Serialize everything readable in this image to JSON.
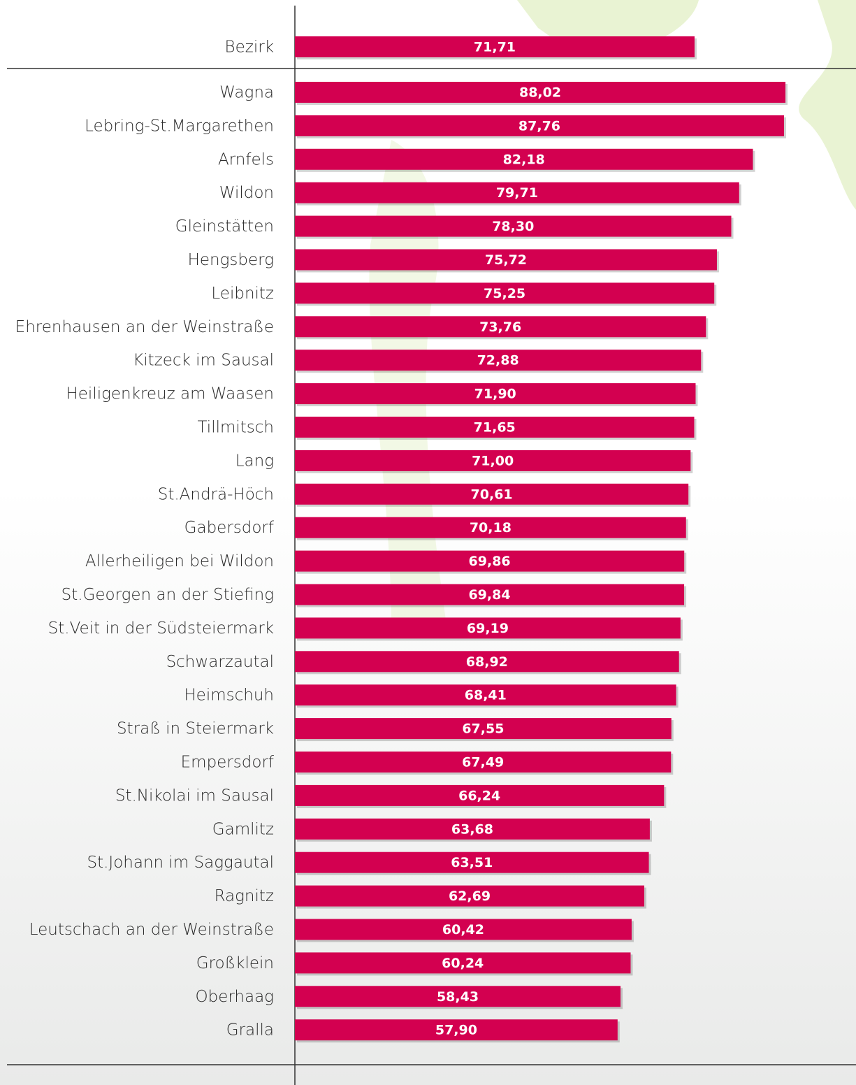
{
  "chart_data": {
    "type": "bar",
    "orientation": "horizontal",
    "categories": [
      "Bezirk",
      "Wagna",
      "Lebring-St.Margarethen",
      "Arnfels",
      "Wildon",
      "Gleinstätten",
      "Hengsberg",
      "Leibnitz",
      "Ehrenhausen an der Weinstraße",
      "Kitzeck im Sausal",
      "Heiligenkreuz am Waasen",
      "Tillmitsch",
      "Lang",
      "St.Andrä-Höch",
      "Gabersdorf",
      "Allerheiligen bei Wildon",
      "St.Georgen an der Stiefing",
      "St.Veit in der Südsteiermark",
      "Schwarzautal",
      "Heimschuh",
      "Straß in Steiermark",
      "Empersdorf",
      "St.Nikolai im Sausal",
      "Gamlitz",
      "St.Johann im Saggautal",
      "Ragnitz",
      "Leutschach an der Weinstraße",
      "Großklein",
      "Oberhaag",
      "Gralla"
    ],
    "values": [
      71.71,
      88.02,
      87.76,
      82.18,
      79.71,
      78.3,
      75.72,
      75.25,
      73.76,
      72.88,
      71.9,
      71.65,
      71.0,
      70.61,
      70.18,
      69.86,
      69.84,
      69.19,
      68.92,
      68.41,
      67.55,
      67.49,
      66.24,
      63.68,
      63.51,
      62.69,
      60.42,
      60.24,
      58.43,
      57.9
    ],
    "value_labels": [
      "71,71",
      "88,02",
      "87,76",
      "82,18",
      "79,71",
      "78,30",
      "75,72",
      "75,25",
      "73,76",
      "72,88",
      "71,90",
      "71,65",
      "71,00",
      "70,61",
      "70,18",
      "69,86",
      "69,84",
      "69,19",
      "68,92",
      "68,41",
      "67,55",
      "67,49",
      "66,24",
      "63,68",
      "63,51",
      "62,69",
      "60,42",
      "60,24",
      "58,43",
      "57,90"
    ],
    "color": "#d30050",
    "xlim": [
      0,
      100
    ]
  }
}
